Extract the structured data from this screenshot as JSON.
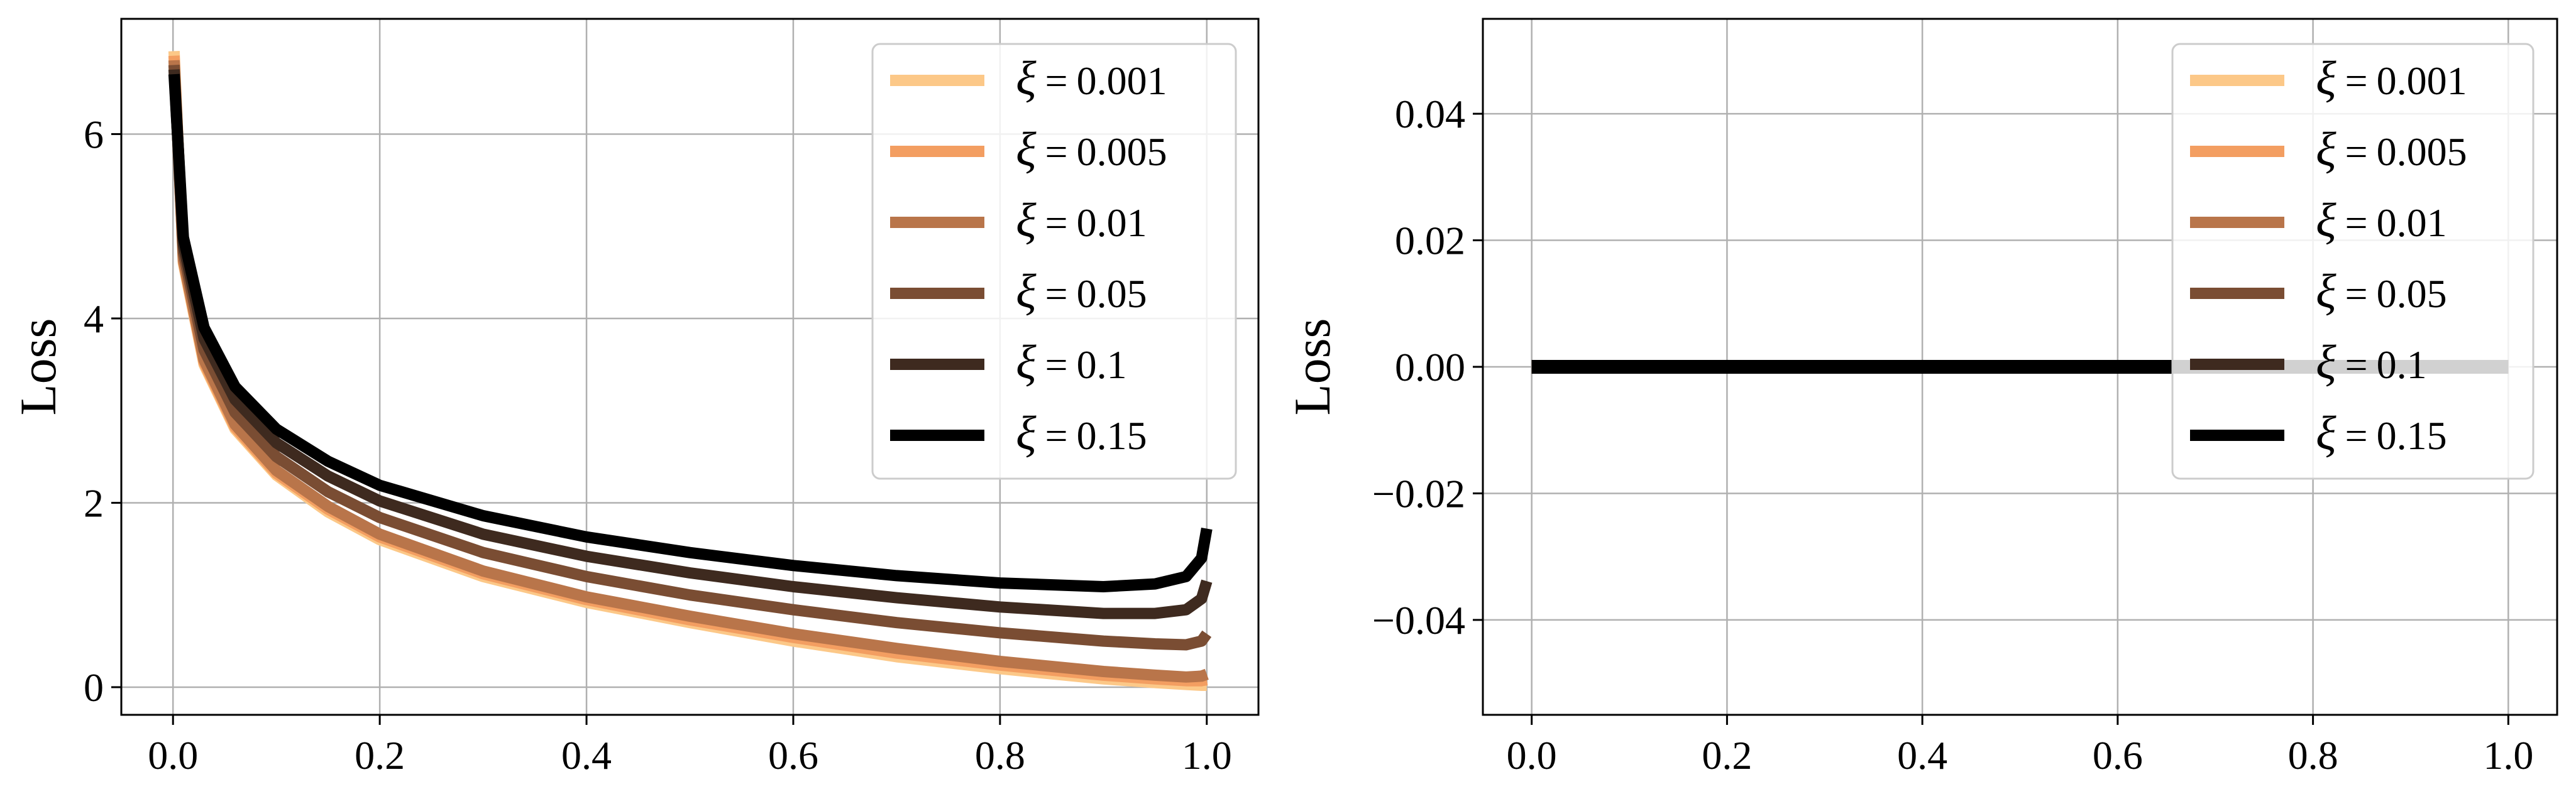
{
  "chart_data": [
    {
      "type": "line",
      "title": "",
      "xlabel": "",
      "ylabel": "Loss",
      "xlim": [
        -0.05,
        1.05
      ],
      "ylim": [
        -0.3,
        7.25
      ],
      "xticks": [
        0.0,
        0.2,
        0.4,
        0.6,
        0.8,
        1.0
      ],
      "xtick_labels": [
        "0.0",
        "0.2",
        "0.4",
        "0.6",
        "0.8",
        "1.0"
      ],
      "yticks": [
        0,
        2,
        4,
        6
      ],
      "ytick_labels": [
        "0",
        "2",
        "4",
        "6"
      ],
      "grid": true,
      "legend_position": "upper right",
      "series": [
        {
          "name": "0.001",
          "color": "#FCC888",
          "x": [
            0.001,
            0.01,
            0.03,
            0.06,
            0.1,
            0.15,
            0.2,
            0.3,
            0.4,
            0.5,
            0.6,
            0.7,
            0.8,
            0.9,
            0.95,
            0.98,
            0.995,
            1.0
          ],
          "y": [
            6.9,
            4.6,
            3.5,
            2.8,
            2.3,
            1.9,
            1.6,
            1.2,
            0.92,
            0.7,
            0.5,
            0.33,
            0.2,
            0.09,
            0.05,
            0.03,
            0.02,
            0.02
          ]
        },
        {
          "name": "0.005",
          "color": "#F39E61",
          "x": [
            0.001,
            0.01,
            0.03,
            0.06,
            0.1,
            0.15,
            0.2,
            0.3,
            0.4,
            0.5,
            0.6,
            0.7,
            0.8,
            0.9,
            0.95,
            0.98,
            0.995,
            1.0
          ],
          "y": [
            6.85,
            4.62,
            3.52,
            2.82,
            2.32,
            1.93,
            1.63,
            1.23,
            0.95,
            0.73,
            0.54,
            0.37,
            0.24,
            0.13,
            0.09,
            0.07,
            0.07,
            0.08
          ]
        },
        {
          "name": "0.01",
          "color": "#B9754A",
          "x": [
            0.001,
            0.01,
            0.03,
            0.06,
            0.1,
            0.15,
            0.2,
            0.3,
            0.4,
            0.5,
            0.6,
            0.7,
            0.8,
            0.9,
            0.95,
            0.98,
            0.995,
            1.0
          ],
          "y": [
            6.8,
            4.64,
            3.55,
            2.85,
            2.35,
            1.96,
            1.66,
            1.26,
            0.98,
            0.77,
            0.58,
            0.42,
            0.28,
            0.17,
            0.13,
            0.11,
            0.12,
            0.14
          ]
        },
        {
          "name": "0.05",
          "color": "#7A4D33",
          "x": [
            0.001,
            0.01,
            0.03,
            0.06,
            0.1,
            0.15,
            0.2,
            0.3,
            0.4,
            0.5,
            0.6,
            0.7,
            0.8,
            0.9,
            0.95,
            0.98,
            0.995,
            1.0
          ],
          "y": [
            6.75,
            4.72,
            3.66,
            2.98,
            2.5,
            2.12,
            1.84,
            1.46,
            1.2,
            1.0,
            0.84,
            0.7,
            0.59,
            0.5,
            0.47,
            0.46,
            0.5,
            0.58
          ]
        },
        {
          "name": "0.1",
          "color": "#3E2A1F",
          "x": [
            0.001,
            0.01,
            0.03,
            0.06,
            0.1,
            0.15,
            0.2,
            0.3,
            0.4,
            0.5,
            0.6,
            0.7,
            0.8,
            0.9,
            0.95,
            0.98,
            0.995,
            1.0
          ],
          "y": [
            6.7,
            4.8,
            3.78,
            3.12,
            2.65,
            2.29,
            2.02,
            1.66,
            1.42,
            1.24,
            1.09,
            0.97,
            0.87,
            0.8,
            0.8,
            0.84,
            0.96,
            1.15
          ]
        },
        {
          "name": "0.15",
          "color": "#000000",
          "x": [
            0.001,
            0.01,
            0.03,
            0.06,
            0.1,
            0.15,
            0.2,
            0.3,
            0.4,
            0.5,
            0.6,
            0.7,
            0.8,
            0.9,
            0.95,
            0.98,
            0.995,
            1.0
          ],
          "y": [
            6.65,
            4.88,
            3.9,
            3.26,
            2.8,
            2.45,
            2.19,
            1.86,
            1.63,
            1.46,
            1.32,
            1.21,
            1.13,
            1.09,
            1.12,
            1.2,
            1.4,
            1.72
          ]
        }
      ]
    },
    {
      "type": "line",
      "title": "",
      "xlabel": "",
      "ylabel": "Loss",
      "xlim": [
        -0.05,
        1.05
      ],
      "ylim": [
        -0.055,
        0.055
      ],
      "xticks": [
        0.0,
        0.2,
        0.4,
        0.6,
        0.8,
        1.0
      ],
      "xtick_labels": [
        "0.0",
        "0.2",
        "0.4",
        "0.6",
        "0.8",
        "1.0"
      ],
      "yticks": [
        0.04,
        0.02,
        0.0,
        -0.02,
        -0.04
      ],
      "ytick_labels": [
        "0.04",
        "0.02",
        "0.00",
        "−0.02",
        "−0.04"
      ],
      "grid": true,
      "legend_position": "upper right",
      "series": [
        {
          "name": "0.001",
          "color": "#FCC888",
          "x": [
            0.0,
            1.0
          ],
          "y": [
            0.0,
            0.0
          ]
        },
        {
          "name": "0.005",
          "color": "#F39E61",
          "x": [
            0.0,
            1.0
          ],
          "y": [
            0.0,
            0.0
          ]
        },
        {
          "name": "0.01",
          "color": "#B9754A",
          "x": [
            0.0,
            1.0
          ],
          "y": [
            0.0,
            0.0
          ]
        },
        {
          "name": "0.05",
          "color": "#7A4D33",
          "x": [
            0.0,
            1.0
          ],
          "y": [
            0.0,
            0.0
          ]
        },
        {
          "name": "0.1",
          "color": "#3E2A1F",
          "x": [
            0.0,
            1.0
          ],
          "y": [
            0.0,
            0.0
          ]
        },
        {
          "name": "0.15",
          "color": "#000000",
          "x": [
            0.0,
            1.0
          ],
          "y": [
            0.0,
            0.0
          ]
        }
      ]
    }
  ],
  "legend_symbol": "ξ",
  "legend_equals": "="
}
